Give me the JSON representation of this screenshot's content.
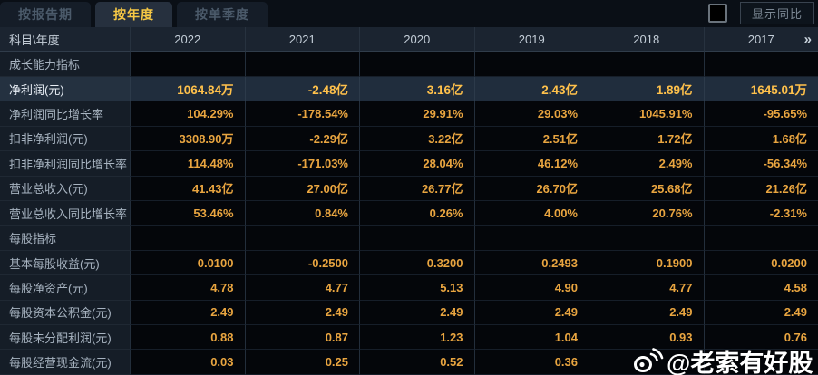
{
  "tabs": [
    {
      "label": "按报告期",
      "active": false
    },
    {
      "label": "按年度",
      "active": true
    },
    {
      "label": "按单季度",
      "active": false
    }
  ],
  "controls": {
    "show_yoy_label": "显示同比",
    "checkbox_checked": false
  },
  "table": {
    "corner_header": "科目\\年度",
    "years": [
      "2022",
      "2021",
      "2020",
      "2019",
      "2018",
      "2017"
    ],
    "more_icon": "»",
    "rows": [
      {
        "type": "section",
        "label": "成长能力指标",
        "values": [
          "",
          "",
          "",
          "",
          "",
          ""
        ]
      },
      {
        "type": "data",
        "highlight": true,
        "label": "净利润(元)",
        "values": [
          "1064.84万",
          "-2.48亿",
          "3.16亿",
          "2.43亿",
          "1.89亿",
          "1645.01万"
        ]
      },
      {
        "type": "data",
        "highlight": false,
        "label": "净利润同比增长率",
        "values": [
          "104.29%",
          "-178.54%",
          "29.91%",
          "29.03%",
          "1045.91%",
          "-95.65%"
        ]
      },
      {
        "type": "data",
        "highlight": false,
        "label": "扣非净利润(元)",
        "values": [
          "3308.90万",
          "-2.29亿",
          "3.22亿",
          "2.51亿",
          "1.72亿",
          "1.68亿"
        ]
      },
      {
        "type": "data",
        "highlight": false,
        "label": "扣非净利润同比增长率",
        "values": [
          "114.48%",
          "-171.03%",
          "28.04%",
          "46.12%",
          "2.49%",
          "-56.34%"
        ]
      },
      {
        "type": "data",
        "highlight": false,
        "label": "营业总收入(元)",
        "values": [
          "41.43亿",
          "27.00亿",
          "26.77亿",
          "26.70亿",
          "25.68亿",
          "21.26亿"
        ]
      },
      {
        "type": "data",
        "highlight": false,
        "label": "营业总收入同比增长率",
        "values": [
          "53.46%",
          "0.84%",
          "0.26%",
          "4.00%",
          "20.76%",
          "-2.31%"
        ]
      },
      {
        "type": "section",
        "label": "每股指标",
        "values": [
          "",
          "",
          "",
          "",
          "",
          ""
        ]
      },
      {
        "type": "data",
        "highlight": false,
        "label": "基本每股收益(元)",
        "values": [
          "0.0100",
          "-0.2500",
          "0.3200",
          "0.2493",
          "0.1900",
          "0.0200"
        ]
      },
      {
        "type": "data",
        "highlight": false,
        "label": "每股净资产(元)",
        "values": [
          "4.78",
          "4.77",
          "5.13",
          "4.90",
          "4.77",
          "4.58"
        ]
      },
      {
        "type": "data",
        "highlight": false,
        "label": "每股资本公积金(元)",
        "values": [
          "2.49",
          "2.49",
          "2.49",
          "2.49",
          "2.49",
          "2.49"
        ]
      },
      {
        "type": "data",
        "highlight": false,
        "label": "每股未分配利润(元)",
        "values": [
          "0.88",
          "0.87",
          "1.23",
          "1.04",
          "0.93",
          "0.76"
        ]
      },
      {
        "type": "data",
        "highlight": false,
        "label": "每股经营现金流(元)",
        "values": [
          "0.03",
          "0.25",
          "0.52",
          "0.36",
          "",
          ""
        ]
      }
    ]
  },
  "watermark": {
    "text": "@老索有好股",
    "icon": "weibo-icon"
  },
  "colors": {
    "accent_gold": "#f6c845",
    "value_gold": "#e9a540",
    "highlight_value_gold": "#ffc14b",
    "page_bg": "#0a0f16",
    "header_bg": "#1b2430",
    "label_col_bg": "#151d27",
    "highlight_row_bg": "#202d3d"
  }
}
